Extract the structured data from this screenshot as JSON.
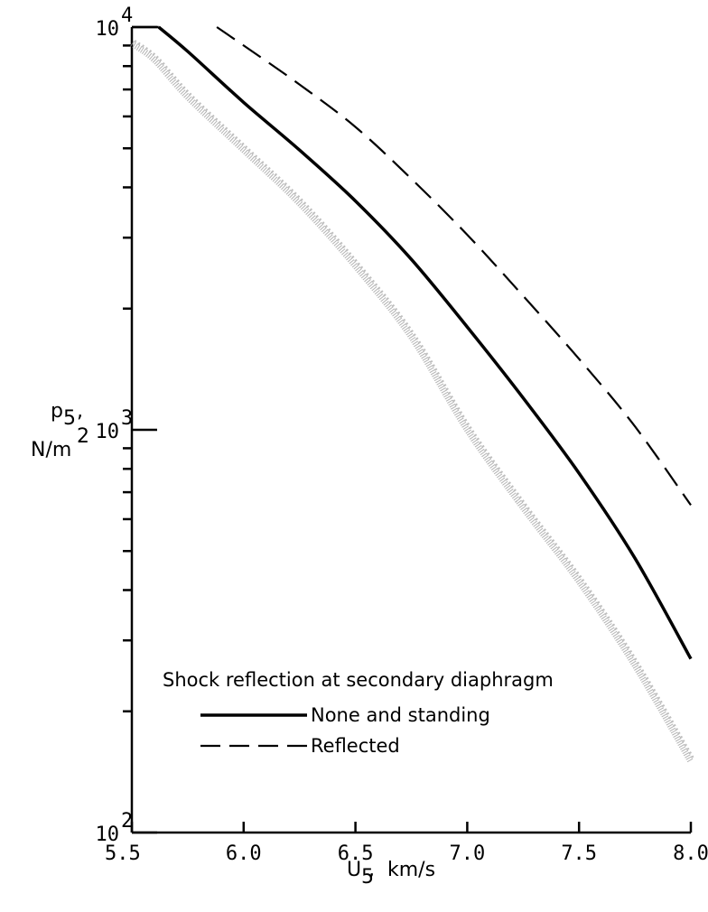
{
  "chart_data": {
    "type": "line",
    "x": [
      5.5,
      5.75,
      6.0,
      6.25,
      6.5,
      6.75,
      7.0,
      7.25,
      7.5,
      7.75,
      8.0
    ],
    "xlim": [
      5.5,
      8.0
    ],
    "ylim": [
      100,
      10000
    ],
    "yscale": "log",
    "xticks": [
      "5.5",
      "6.0",
      "6.5",
      "7.0",
      "7.5",
      "8.0"
    ],
    "yticks_labeled": [
      {
        "value": 100,
        "base": "10",
        "exp": "2"
      },
      {
        "value": 1000,
        "base": "10",
        "exp": "3"
      },
      {
        "value": 10000,
        "base": "10",
        "exp": "4"
      }
    ],
    "xlabel": {
      "main": "U",
      "sub": "5",
      "rest": ",  km/s"
    },
    "ylabel": {
      "main": "p",
      "sub": "5",
      "comma": ",",
      "unit": "N/m",
      "sup": "2"
    },
    "grid": false,
    "legend": {
      "title": "Shock reflection at secondary diaphragm",
      "placement": "lower-left",
      "entries": [
        {
          "label": "None and standing",
          "style": "solid"
        },
        {
          "label": "Reflected",
          "style": "dashed"
        }
      ]
    },
    "series": [
      {
        "label": "None and standing",
        "style": "solid",
        "points": [
          [
            5.62,
            10000
          ],
          [
            5.75,
            8700
          ],
          [
            6.0,
            6500
          ],
          [
            6.25,
            4950
          ],
          [
            6.5,
            3700
          ],
          [
            6.75,
            2650
          ],
          [
            7.0,
            1800
          ],
          [
            7.25,
            1200
          ],
          [
            7.5,
            780
          ],
          [
            7.75,
            480
          ],
          [
            8.0,
            270
          ]
        ]
      },
      {
        "label": "Reflected",
        "style": "dashed",
        "points": [
          [
            5.88,
            10000
          ],
          [
            6.0,
            9000
          ],
          [
            6.25,
            7200
          ],
          [
            6.5,
            5650
          ],
          [
            6.75,
            4200
          ],
          [
            7.0,
            3050
          ],
          [
            7.25,
            2150
          ],
          [
            7.5,
            1500
          ],
          [
            7.75,
            1020
          ],
          [
            8.0,
            650
          ]
        ]
      },
      {
        "label": "data band",
        "style": "stippled",
        "points": [
          [
            5.5,
            9100
          ],
          [
            5.6,
            8300
          ],
          [
            5.75,
            6700
          ],
          [
            6.0,
            4950
          ],
          [
            6.25,
            3650
          ],
          [
            6.5,
            2550
          ],
          [
            6.75,
            1700
          ],
          [
            7.0,
            1000
          ],
          [
            7.25,
            640
          ],
          [
            7.5,
            420
          ],
          [
            7.75,
            260
          ],
          [
            8.0,
            150
          ]
        ]
      }
    ]
  }
}
